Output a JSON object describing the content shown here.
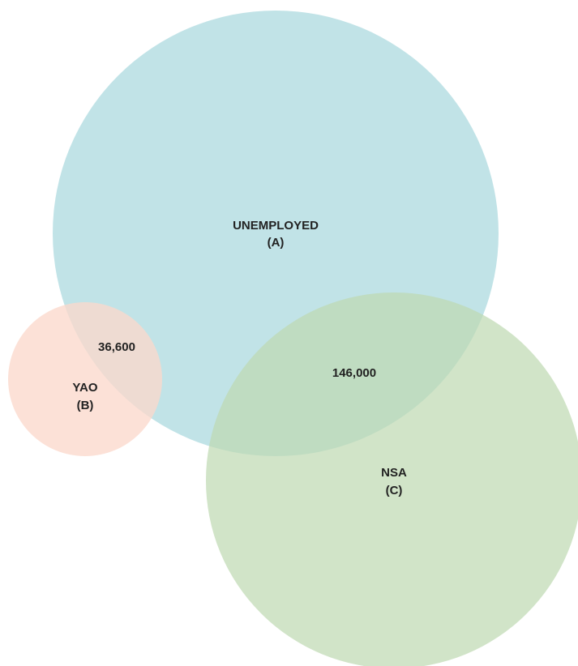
{
  "sets": {
    "a": {
      "name": "UNEMPLOYED",
      "letter": "(A)",
      "color": "#b3dde2"
    },
    "b": {
      "name": "YAO",
      "letter": "(B)",
      "color": "#fbd8cc"
    },
    "c": {
      "name": "NSA",
      "letter": "(C)",
      "color": "#bed9b1"
    }
  },
  "intersections": {
    "ab": "36,600",
    "ac": "146,000"
  }
}
